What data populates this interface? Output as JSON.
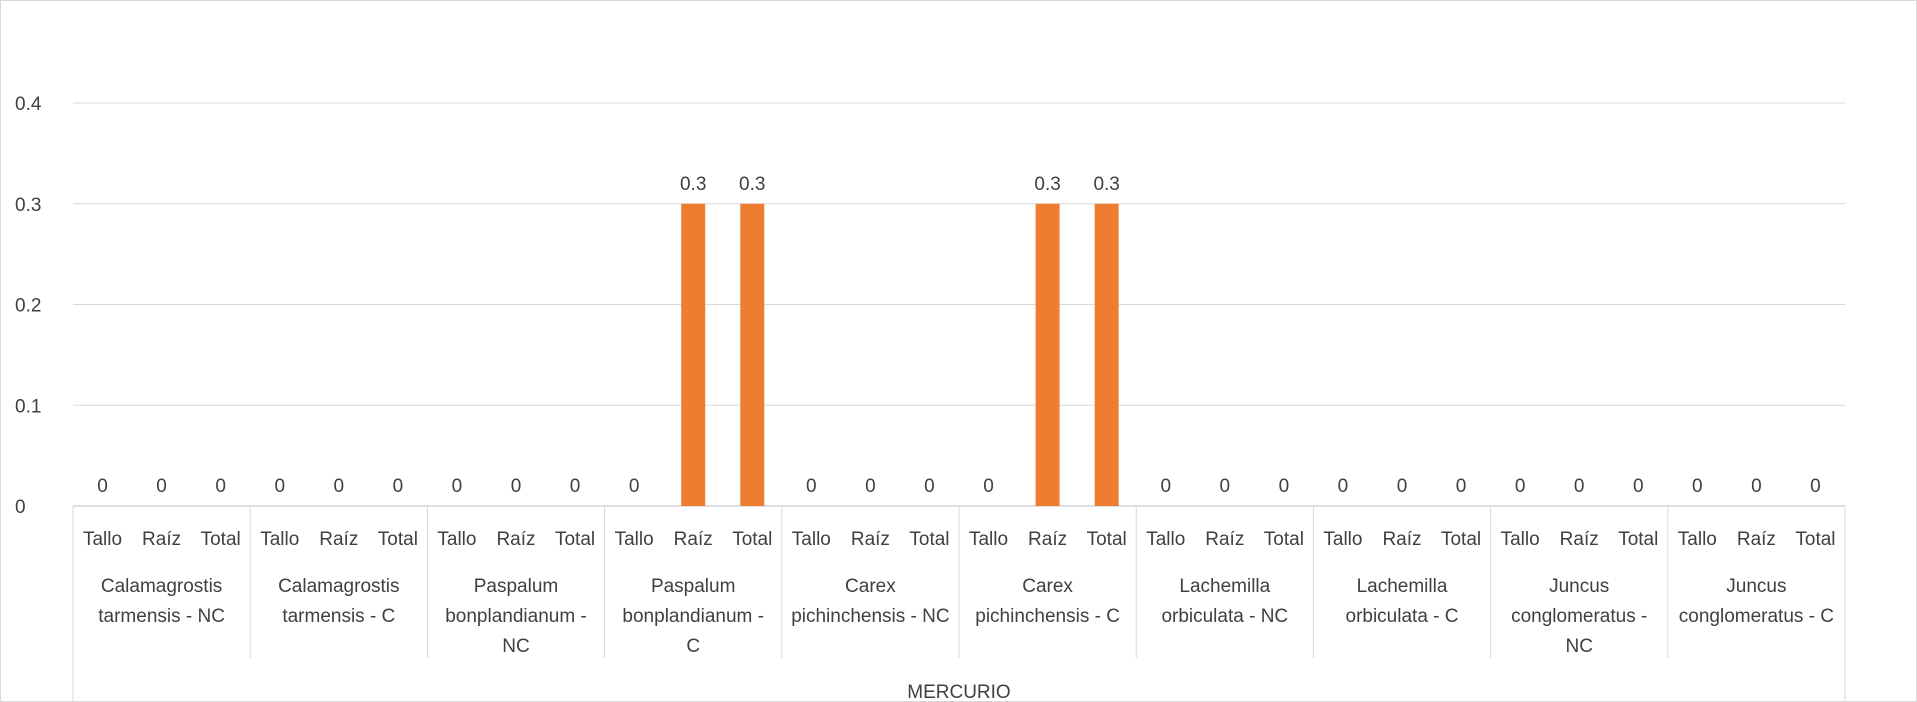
{
  "chart_data": {
    "type": "bar",
    "title": "",
    "xlabel": "",
    "ylabel": "",
    "ylim": [
      0,
      0.4
    ],
    "yticks": [
      "0",
      "0.1",
      "0.2",
      "0.3",
      "0.4"
    ],
    "grid": true,
    "legend": "none",
    "bar_color": "#ED7D31",
    "outer_category": "MERCURIO",
    "subcategories": [
      "Tallo",
      "Raíz",
      "Total"
    ],
    "groups": [
      {
        "label": [
          "Calamagrostis",
          "tarmensis - NC"
        ],
        "values": [
          0,
          0,
          0
        ],
        "value_labels": [
          "0",
          "0",
          "0"
        ]
      },
      {
        "label": [
          "Calamagrostis",
          "tarmensis - C"
        ],
        "values": [
          0,
          0,
          0
        ],
        "value_labels": [
          "0",
          "0",
          "0"
        ]
      },
      {
        "label": [
          "Paspalum",
          "bonplandianum -",
          "NC"
        ],
        "values": [
          0,
          0,
          0
        ],
        "value_labels": [
          "0",
          "0",
          "0"
        ]
      },
      {
        "label": [
          "Paspalum",
          "bonplandianum -",
          "C"
        ],
        "values": [
          0,
          0.3,
          0.3
        ],
        "value_labels": [
          "0",
          "0.3",
          "0.3"
        ]
      },
      {
        "label": [
          "Carex",
          "pichinchensis - NC"
        ],
        "values": [
          0,
          0,
          0
        ],
        "value_labels": [
          "0",
          "0",
          "0"
        ]
      },
      {
        "label": [
          "Carex",
          "pichinchensis - C"
        ],
        "values": [
          0,
          0.3,
          0.3
        ],
        "value_labels": [
          "0",
          "0.3",
          "0.3"
        ]
      },
      {
        "label": [
          "Lachemilla",
          "orbiculata - NC"
        ],
        "values": [
          0,
          0,
          0
        ],
        "value_labels": [
          "0",
          "0",
          "0"
        ]
      },
      {
        "label": [
          "Lachemilla",
          "orbiculata - C"
        ],
        "values": [
          0,
          0,
          0
        ],
        "value_labels": [
          "0",
          "0",
          "0"
        ]
      },
      {
        "label": [
          "Juncus",
          "conglomeratus -",
          "NC"
        ],
        "values": [
          0,
          0,
          0
        ],
        "value_labels": [
          "0",
          "0",
          "0"
        ]
      },
      {
        "label": [
          "Juncus",
          "conglomeratus - C"
        ],
        "values": [
          0,
          0,
          0
        ],
        "value_labels": [
          "0",
          "0",
          "0"
        ]
      }
    ]
  }
}
